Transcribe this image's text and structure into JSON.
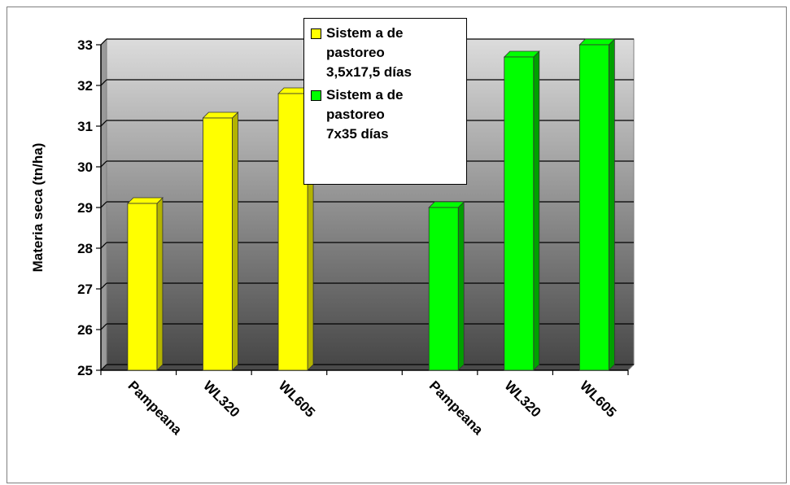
{
  "chart_data": {
    "type": "bar",
    "ylabel": "Materia seca (tn/ha)",
    "ylim": [
      25,
      33
    ],
    "yticks": [
      "25",
      "26",
      "27",
      "28",
      "29",
      "30",
      "31",
      "32",
      "33"
    ],
    "grid": true,
    "legend_position": "top-center",
    "series": [
      {
        "name": [
          "Sistem a de",
          "pastoreo",
          "3,5x17,5 días"
        ],
        "color": "#ffff00",
        "color_side": "#b3b300",
        "categories": [
          "Pampeana",
          "WL320",
          "WL605"
        ],
        "values": [
          29.1,
          31.2,
          31.8
        ]
      },
      {
        "name": [
          "Sistem a de",
          "pastoreo",
          "7x35 días"
        ],
        "color": "#00ff00",
        "color_side": "#00a000",
        "categories": [
          "Pampeana",
          "WL320",
          "WL605"
        ],
        "values": [
          29.0,
          32.7,
          33.0
        ]
      }
    ]
  }
}
